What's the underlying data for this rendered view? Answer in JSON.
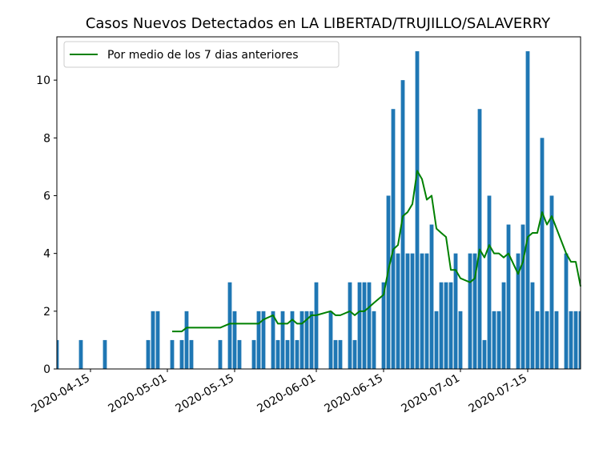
{
  "chart_data": {
    "type": "bar",
    "title": "Casos Nuevos Detectados en LA LIBERTAD/TRUJILLO/SALAVERRY",
    "xlabel": "",
    "ylabel": "",
    "x_start": "2020-04-08",
    "x_end": "2020-07-26",
    "ylim": [
      0,
      11.5
    ],
    "x_ticks": [
      "2020-04-15",
      "2020-05-01",
      "2020-05-15",
      "2020-06-01",
      "2020-06-15",
      "2020-07-01",
      "2020-07-15"
    ],
    "y_ticks": [
      0,
      2,
      4,
      6,
      8,
      10
    ],
    "grid": false,
    "legend_position": "top-left",
    "bar_color": "#1f77b4",
    "line_color": "#008000",
    "bars": [
      [
        "2020-04-08",
        1
      ],
      [
        "2020-04-13",
        1
      ],
      [
        "2020-04-18",
        1
      ],
      [
        "2020-04-27",
        1
      ],
      [
        "2020-04-28",
        2
      ],
      [
        "2020-04-29",
        2
      ],
      [
        "2020-05-02",
        1
      ],
      [
        "2020-05-04",
        1
      ],
      [
        "2020-05-05",
        2
      ],
      [
        "2020-05-06",
        1
      ],
      [
        "2020-05-12",
        1
      ],
      [
        "2020-05-14",
        3
      ],
      [
        "2020-05-15",
        2
      ],
      [
        "2020-05-16",
        1
      ],
      [
        "2020-05-19",
        1
      ],
      [
        "2020-05-20",
        2
      ],
      [
        "2020-05-21",
        2
      ],
      [
        "2020-05-23",
        2
      ],
      [
        "2020-05-24",
        1
      ],
      [
        "2020-05-25",
        2
      ],
      [
        "2020-05-26",
        1
      ],
      [
        "2020-05-27",
        2
      ],
      [
        "2020-05-28",
        1
      ],
      [
        "2020-05-29",
        2
      ],
      [
        "2020-05-30",
        2
      ],
      [
        "2020-05-31",
        2
      ],
      [
        "2020-06-01",
        3
      ],
      [
        "2020-06-04",
        2
      ],
      [
        "2020-06-05",
        1
      ],
      [
        "2020-06-06",
        1
      ],
      [
        "2020-06-08",
        3
      ],
      [
        "2020-06-09",
        1
      ],
      [
        "2020-06-10",
        3
      ],
      [
        "2020-06-11",
        3
      ],
      [
        "2020-06-12",
        3
      ],
      [
        "2020-06-13",
        2
      ],
      [
        "2020-06-15",
        3
      ],
      [
        "2020-06-16",
        6
      ],
      [
        "2020-06-17",
        9
      ],
      [
        "2020-06-18",
        4
      ],
      [
        "2020-06-19",
        10
      ],
      [
        "2020-06-20",
        4
      ],
      [
        "2020-06-21",
        4
      ],
      [
        "2020-06-22",
        11
      ],
      [
        "2020-06-23",
        4
      ],
      [
        "2020-06-24",
        4
      ],
      [
        "2020-06-25",
        5
      ],
      [
        "2020-06-26",
        2
      ],
      [
        "2020-06-27",
        3
      ],
      [
        "2020-06-28",
        3
      ],
      [
        "2020-06-29",
        3
      ],
      [
        "2020-06-30",
        4
      ],
      [
        "2020-07-01",
        2
      ],
      [
        "2020-07-03",
        4
      ],
      [
        "2020-07-04",
        4
      ],
      [
        "2020-07-05",
        9
      ],
      [
        "2020-07-06",
        1
      ],
      [
        "2020-07-07",
        6
      ],
      [
        "2020-07-08",
        2
      ],
      [
        "2020-07-09",
        2
      ],
      [
        "2020-07-10",
        3
      ],
      [
        "2020-07-11",
        5
      ],
      [
        "2020-07-13",
        4
      ],
      [
        "2020-07-14",
        5
      ],
      [
        "2020-07-15",
        11
      ],
      [
        "2020-07-16",
        3
      ],
      [
        "2020-07-17",
        2
      ],
      [
        "2020-07-18",
        8
      ],
      [
        "2020-07-19",
        2
      ],
      [
        "2020-07-20",
        6
      ],
      [
        "2020-07-21",
        2
      ],
      [
        "2020-07-23",
        4
      ],
      [
        "2020-07-24",
        2
      ],
      [
        "2020-07-25",
        2
      ],
      [
        "2020-07-26",
        2
      ]
    ],
    "series": [
      {
        "name": "Por medio de los 7 dias anteriores",
        "points": [
          [
            "2020-05-02",
            1.3
          ],
          [
            "2020-05-04",
            1.3
          ],
          [
            "2020-05-05",
            1.43
          ],
          [
            "2020-05-12",
            1.43
          ],
          [
            "2020-05-14",
            1.57
          ],
          [
            "2020-05-15",
            1.57
          ],
          [
            "2020-05-16",
            1.57
          ],
          [
            "2020-05-19",
            1.57
          ],
          [
            "2020-05-20",
            1.57
          ],
          [
            "2020-05-21",
            1.71
          ],
          [
            "2020-05-23",
            1.86
          ],
          [
            "2020-05-24",
            1.57
          ],
          [
            "2020-05-25",
            1.57
          ],
          [
            "2020-05-26",
            1.57
          ],
          [
            "2020-05-27",
            1.71
          ],
          [
            "2020-05-28",
            1.57
          ],
          [
            "2020-05-29",
            1.57
          ],
          [
            "2020-05-30",
            1.71
          ],
          [
            "2020-05-31",
            1.86
          ],
          [
            "2020-06-01",
            1.86
          ],
          [
            "2020-06-04",
            2.0
          ],
          [
            "2020-06-05",
            1.86
          ],
          [
            "2020-06-06",
            1.86
          ],
          [
            "2020-06-08",
            2.0
          ],
          [
            "2020-06-09",
            1.86
          ],
          [
            "2020-06-10",
            2.0
          ],
          [
            "2020-06-11",
            2.0
          ],
          [
            "2020-06-12",
            2.14
          ],
          [
            "2020-06-13",
            2.29
          ],
          [
            "2020-06-15",
            2.57
          ],
          [
            "2020-06-16",
            3.43
          ],
          [
            "2020-06-17",
            4.14
          ],
          [
            "2020-06-18",
            4.29
          ],
          [
            "2020-06-19",
            5.29
          ],
          [
            "2020-06-20",
            5.43
          ],
          [
            "2020-06-21",
            5.71
          ],
          [
            "2020-06-22",
            6.86
          ],
          [
            "2020-06-23",
            6.57
          ],
          [
            "2020-06-24",
            5.86
          ],
          [
            "2020-06-25",
            6.0
          ],
          [
            "2020-06-26",
            4.86
          ],
          [
            "2020-06-27",
            4.71
          ],
          [
            "2020-06-28",
            4.57
          ],
          [
            "2020-06-29",
            3.43
          ],
          [
            "2020-06-30",
            3.43
          ],
          [
            "2020-07-01",
            3.14
          ],
          [
            "2020-07-03",
            3.0
          ],
          [
            "2020-07-04",
            3.14
          ],
          [
            "2020-07-05",
            4.14
          ],
          [
            "2020-07-06",
            3.86
          ],
          [
            "2020-07-07",
            4.29
          ],
          [
            "2020-07-08",
            4.0
          ],
          [
            "2020-07-09",
            4.0
          ],
          [
            "2020-07-10",
            3.86
          ],
          [
            "2020-07-11",
            4.0
          ],
          [
            "2020-07-13",
            3.29
          ],
          [
            "2020-07-14",
            3.71
          ],
          [
            "2020-07-15",
            4.57
          ],
          [
            "2020-07-16",
            4.71
          ],
          [
            "2020-07-17",
            4.71
          ],
          [
            "2020-07-18",
            5.43
          ],
          [
            "2020-07-19",
            5.0
          ],
          [
            "2020-07-20",
            5.29
          ],
          [
            "2020-07-21",
            4.86
          ],
          [
            "2020-07-23",
            4.0
          ],
          [
            "2020-07-24",
            3.71
          ],
          [
            "2020-07-25",
            3.71
          ],
          [
            "2020-07-26",
            2.86
          ]
        ]
      }
    ]
  }
}
